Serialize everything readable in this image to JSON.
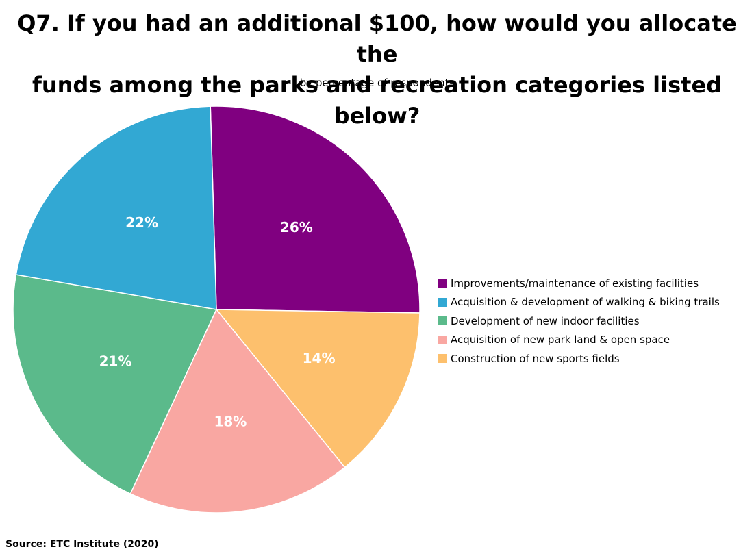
{
  "title_line1": "Q7. If you had an additional $100, how would you allocate the",
  "title_line2": "funds among the parks and recreation categories listed below?",
  "subtitle": "by percentage of respondents",
  "source": "Source:  ETC Institute (2020)",
  "chart_data": {
    "type": "pie",
    "title": "Q7. If you had an additional $100, how would you allocate the funds among the parks and recreation categories listed below?",
    "subtitle": "by percentage of respondents",
    "legend_position": "right",
    "slices": [
      {
        "name": "Improvements/maintenance of existing facilities",
        "value": 26,
        "label": "26%",
        "color": "#800080"
      },
      {
        "name": "Construction of new sports fields",
        "value": 14,
        "label": "14%",
        "color": "#FDC06D"
      },
      {
        "name": "Acquisition of new park land & open space",
        "value": 18,
        "label": "18%",
        "color": "#F9A7A2"
      },
      {
        "name": "Development of new indoor facilities",
        "value": 21,
        "label": "21%",
        "color": "#5BBA8B"
      },
      {
        "name": "Acquisition & development of walking & biking trails",
        "value": 22,
        "label": "22%",
        "color": "#32A8D3"
      }
    ],
    "legend": [
      {
        "name": "Improvements/maintenance of existing facilities",
        "color": "#800080"
      },
      {
        "name": "Acquisition & development of walking & biking trails",
        "color": "#32A8D3"
      },
      {
        "name": "Development of new indoor facilities",
        "color": "#5BBA8B"
      },
      {
        "name": "Acquisition of new park land & open space",
        "color": "#F9A7A2"
      },
      {
        "name": "Construction of new sports fields",
        "color": "#FDC06D"
      }
    ]
  }
}
